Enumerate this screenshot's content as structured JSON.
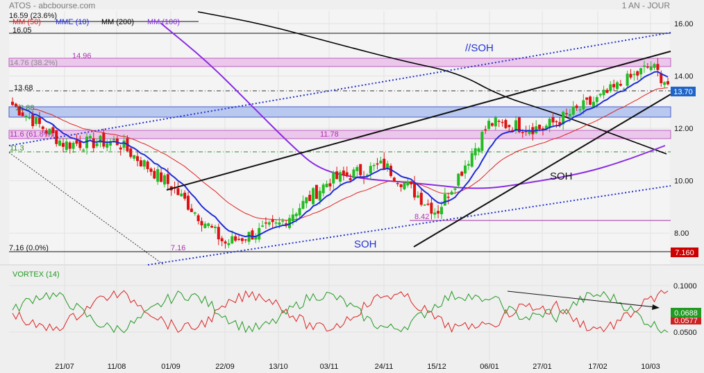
{
  "header": {
    "title": "ATOS - abcbourse.com",
    "period": "1 AN - JOUR"
  },
  "legend": [
    {
      "label": "MM (50)",
      "color": "#e02020"
    },
    {
      "label": "MME (10)",
      "color": "#1f2bd6"
    },
    {
      "label": "MM (200)",
      "color": "#000000"
    },
    {
      "label": "MM (100)",
      "color": "#8a2be2"
    }
  ],
  "colors": {
    "up": "#22bb22",
    "down": "#dd1111",
    "mme10": "#1f2bd6",
    "mm50": "#e02020",
    "mm100": "#8a2be2",
    "mm200": "#000000",
    "zone_pink": "#e8b9e8",
    "zone_blue": "#b6c4ec",
    "vortex_plus": "#229922",
    "vortex_minus": "#dd2222",
    "last_price": "#1f64c8",
    "low_price": "#cc0000"
  },
  "annotations": {
    "l_16_59": "16.59 (23.6%)",
    "l_16_05": "16.05",
    "l_14_76": "14.76 (38.2%)",
    "l_14_96": "14.96",
    "l_13_68": "13.68",
    "l_12_88": "12.88",
    "l_11_6": "11.6 (61.8%)",
    "l_11_3": "11.3",
    "l_11_78": "11.78",
    "l_8_42": "8.42",
    "l_7_16": "7.16 (0.0%)",
    "l_7_16b": "7.16",
    "soh_par": "//SOH",
    "soh_low": "SOH",
    "soh_right": "SOH"
  },
  "price_axis": {
    "ticks": [
      "16.00",
      "14.00",
      "12.00",
      "10.00",
      "8.00"
    ],
    "last": "13.70",
    "low": "7.160"
  },
  "vortex": {
    "title": "VORTEX (14)",
    "ticks": [
      "0.1000",
      "0.0500"
    ],
    "value_plus": "0.0688",
    "value_minus": "0.0577"
  },
  "x_axis": [
    "21/07",
    "11/08",
    "01/09",
    "22/09",
    "13/10",
    "03/11",
    "24/11",
    "15/12",
    "06/01",
    "27/01",
    "17/02",
    "10/03"
  ],
  "chart_data": {
    "type": "candlestick",
    "title": "ATOS",
    "subtitle": "1 AN - JOUR",
    "ylim": [
      7,
      16.4
    ],
    "yticks": [
      8,
      10,
      12,
      14,
      16
    ],
    "x": [
      "21/07",
      "11/08",
      "01/09",
      "22/09",
      "13/10",
      "03/11",
      "24/11",
      "15/12",
      "06/01",
      "27/01",
      "17/02",
      "10/03"
    ],
    "close_anchors": [
      {
        "x": "start",
        "y": 12.9
      },
      {
        "x": "21/07",
        "y": 11.4
      },
      {
        "x": "11/08",
        "y": 11.5
      },
      {
        "x": "01/09",
        "y": 9.8
      },
      {
        "x": "22/09",
        "y": 7.6
      },
      {
        "x": "13/10",
        "y": 8.3
      },
      {
        "x": "03/11",
        "y": 10.0
      },
      {
        "x": "24/11",
        "y": 10.6
      },
      {
        "x": "15/12",
        "y": 8.8
      },
      {
        "x": "06/01",
        "y": 12.2
      },
      {
        "x": "27/01",
        "y": 12.0
      },
      {
        "x": "17/02",
        "y": 13.1
      },
      {
        "x": "10/03",
        "y": 14.4
      },
      {
        "x": "end",
        "y": 13.7
      }
    ],
    "last_price": 13.7,
    "levels": [
      16.59,
      16.05,
      14.96,
      14.76,
      13.68,
      12.88,
      11.78,
      11.6,
      11.3,
      8.42,
      7.16
    ],
    "indicators": [
      "MM (50)",
      "MME (10)",
      "MM (200)",
      "MM (100)",
      "VORTEX (14)"
    ],
    "vortex": {
      "plus_last": 0.0688,
      "minus_last": 0.0577,
      "ylim": [
        0.03,
        0.12
      ],
      "yticks": [
        0.1,
        0.05
      ]
    }
  }
}
